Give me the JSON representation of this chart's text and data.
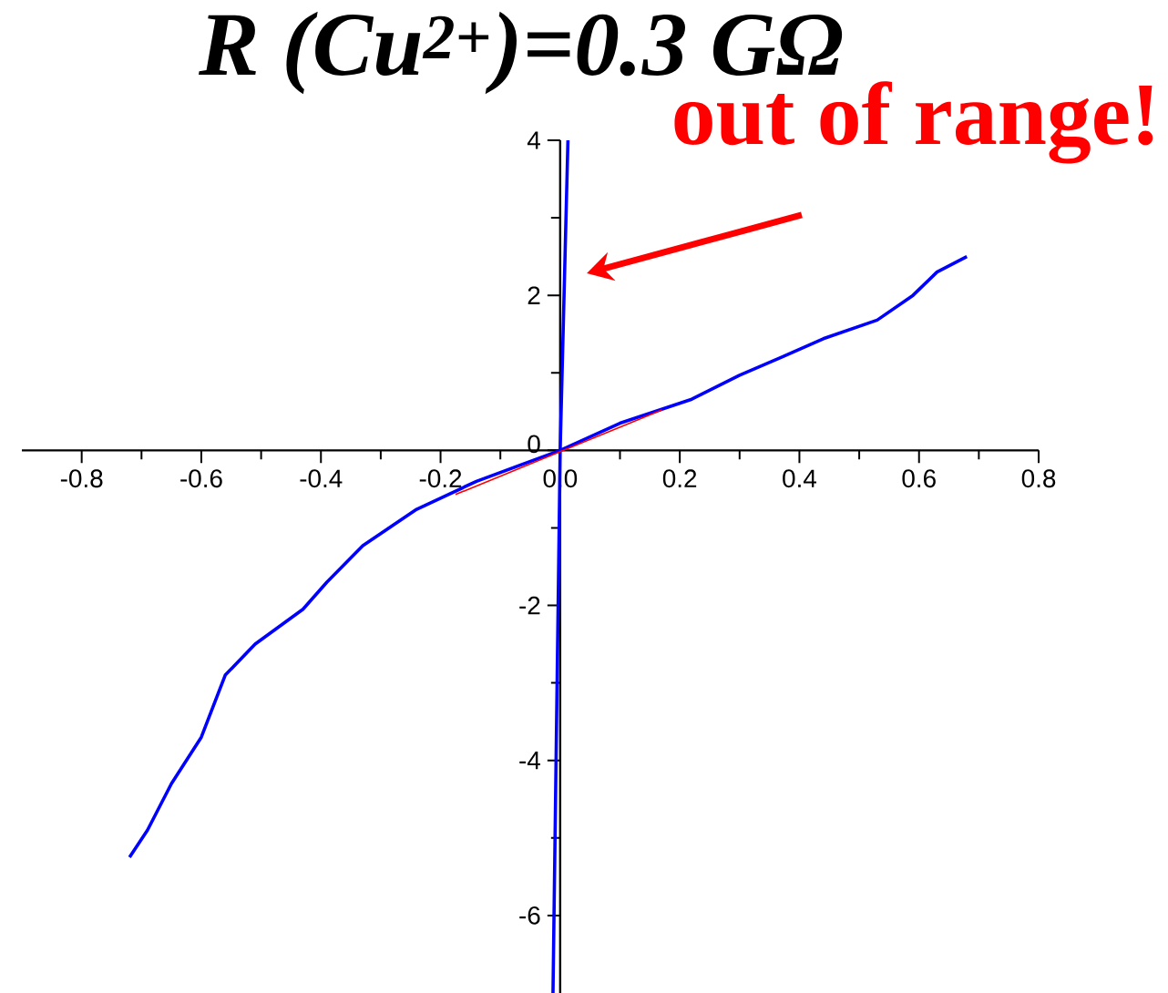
{
  "chart_data": {
    "type": "line",
    "title": "R (Cu$^{2+}$)=0.3 GΩ",
    "xlim": [
      -0.9,
      0.8
    ],
    "ylim": [
      -7,
      4
    ],
    "xticks": [
      -0.8,
      -0.6,
      -0.4,
      -0.2,
      {
        "value": 0,
        "label": "0.0"
      },
      0.2,
      0.4,
      0.6,
      0.8
    ],
    "yticks": [
      -6,
      -4,
      -2,
      0,
      2,
      4
    ],
    "series": [
      {
        "color": "#0000ff",
        "x": [
          -0.72,
          -0.69,
          -0.65,
          -0.6,
          -0.56,
          -0.51,
          -0.43,
          -0.39,
          -0.33,
          -0.24,
          -0.14,
          0,
          0.1,
          0.22,
          0.3,
          0.37,
          0.44,
          0.53,
          0.59,
          0.63,
          0.68
        ],
        "values": [
          -5.25,
          -4.9,
          -4.3,
          -3.7,
          -2.9,
          -2.5,
          -2.05,
          -1.7,
          -1.23,
          -0.76,
          -0.4,
          0,
          0.35,
          0.66,
          0.97,
          1.2,
          1.44,
          1.68,
          2.0,
          2.3,
          2.5
        ]
      },
      {
        "color": "#0000ff",
        "x": [
          -0.012,
          0,
          0.013
        ],
        "values": [
          -7,
          0,
          4
        ]
      },
      {
        "color": "#ff0000",
        "x": [
          -0.175,
          0.17
        ],
        "values": [
          -0.57,
          0.52
        ]
      }
    ],
    "annotations": [
      "out of range!"
    ],
    "grid": false
  }
}
